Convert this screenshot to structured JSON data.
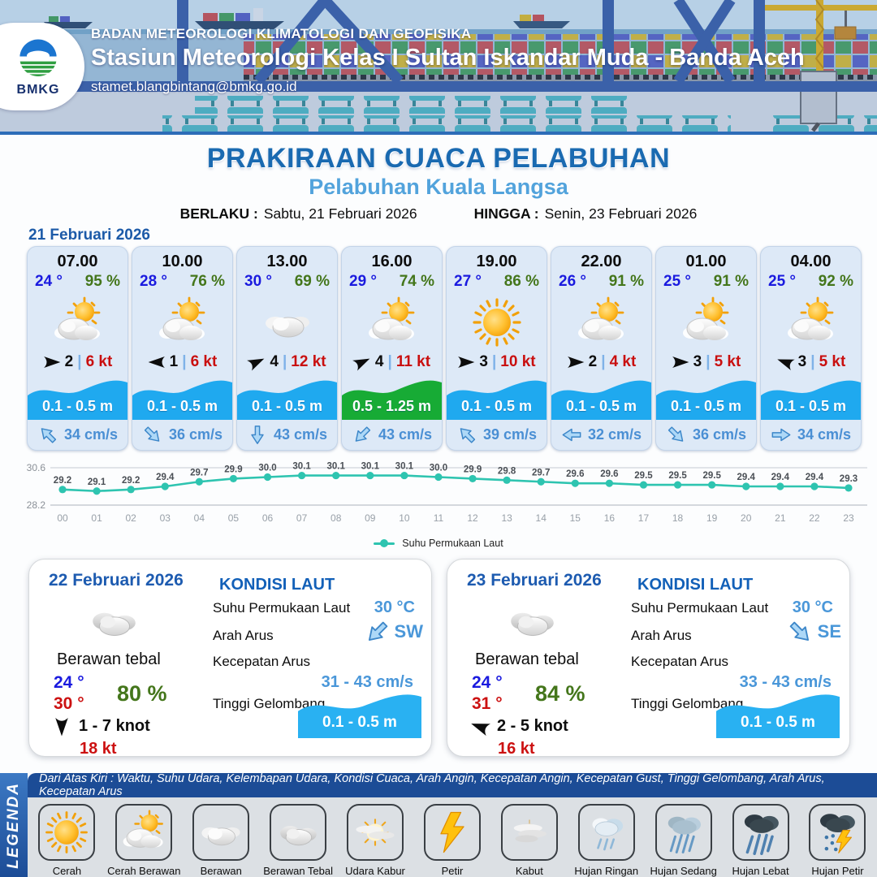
{
  "header": {
    "logo": "BMKG",
    "org": "BADAN METEOROLOGI KLIMATOLOGI DAN GEOFISIKA",
    "station": "Stasiun Meteorologi Kelas I Sultan Iskandar Muda - Banda Aceh",
    "email": "stamet.blangbintang@bmkg.go.id"
  },
  "title": {
    "main": "PRAKIRAAN CUACA PELABUHAN",
    "sub": "Pelabuhan Kuala Langsa"
  },
  "validity": {
    "from_label": "BERLAKU :",
    "from": "Sabtu, 21 Februari 2026",
    "to_label": "HINGGA :",
    "to": "Senin, 23 Februari 2026"
  },
  "ui": {
    "sep": "|"
  },
  "colors": {
    "title_blue": "#1a6ab1",
    "subtitle_blue": "#52a3dc",
    "temp_blue": "#1a1adf",
    "humidity_green": "#44761b",
    "gust_red": "#c90f0f",
    "wave_blue": "#1fa9ef",
    "wave_green": "#17ab35",
    "current_blue": "#4a8fd4",
    "sst_line_teal": "#2ec4b0"
  },
  "day1": {
    "date": "21 Februari 2026",
    "cards": [
      {
        "time": "07.00",
        "temp": "24 °",
        "humidity": "95 %",
        "condition": "Cerah Berawan",
        "icon": "#i-suncloud",
        "wind_deg": 0,
        "wind": "2",
        "gust": "6 kt",
        "wave": "0.1 - 0.5 m",
        "wave_color": "#1fa9ef",
        "current_deg": -135,
        "current": "34 cm/s"
      },
      {
        "time": "10.00",
        "temp": "28 °",
        "humidity": "76 %",
        "condition": "Cerah Berawan",
        "icon": "#i-suncloud",
        "wind_deg": 180,
        "wind": "1",
        "gust": "6 kt",
        "wave": "0.1 - 0.5 m",
        "wave_color": "#1fa9ef",
        "current_deg": 45,
        "current": "36 cm/s"
      },
      {
        "time": "13.00",
        "temp": "30 °",
        "humidity": "69 %",
        "condition": "Berawan",
        "icon": "#i-cloud",
        "wind_deg": -25,
        "wind": "4",
        "gust": "12 kt",
        "wave": "0.1 - 0.5 m",
        "wave_color": "#1fa9ef",
        "current_deg": 90,
        "current": "43 cm/s"
      },
      {
        "time": "16.00",
        "temp": "29 °",
        "humidity": "74 %",
        "condition": "Cerah Berawan",
        "icon": "#i-suncloud",
        "wind_deg": -25,
        "wind": "4",
        "gust": "11 kt",
        "wave": "0.5 - 1.25 m",
        "wave_color": "#17ab35",
        "current_deg": 135,
        "current": "43 cm/s"
      },
      {
        "time": "19.00",
        "temp": "27 °",
        "humidity": "86 %",
        "condition": "Cerah",
        "icon": "#i-sun",
        "wind_deg": 0,
        "wind": "3",
        "gust": "10 kt",
        "wave": "0.1 - 0.5 m",
        "wave_color": "#1fa9ef",
        "current_deg": -135,
        "current": "39 cm/s"
      },
      {
        "time": "22.00",
        "temp": "26 °",
        "humidity": "91 %",
        "condition": "Cerah Berawan",
        "icon": "#i-suncloud",
        "wind_deg": 0,
        "wind": "2",
        "gust": "4 kt",
        "wave": "0.1 - 0.5 m",
        "wave_color": "#1fa9ef",
        "current_deg": 180,
        "current": "32 cm/s"
      },
      {
        "time": "01.00",
        "temp": "25 °",
        "humidity": "91 %",
        "condition": "Cerah Berawan",
        "icon": "#i-suncloud",
        "wind_deg": 0,
        "wind": "3",
        "gust": "5 kt",
        "wave": "0.1 - 0.5 m",
        "wave_color": "#1fa9ef",
        "current_deg": 45,
        "current": "36 cm/s"
      },
      {
        "time": "04.00",
        "temp": "25 °",
        "humidity": "92 %",
        "condition": "Cerah Berawan",
        "icon": "#i-suncloud",
        "wind_deg": -160,
        "wind": "3",
        "gust": "5 kt",
        "wave": "0.1 - 0.5 m",
        "wave_color": "#1fa9ef",
        "current_deg": 0,
        "current": "34 cm/s"
      }
    ]
  },
  "chart_data": {
    "type": "line",
    "title": "",
    "x": [
      "00",
      "01",
      "02",
      "03",
      "04",
      "05",
      "06",
      "07",
      "08",
      "09",
      "10",
      "11",
      "12",
      "13",
      "14",
      "15",
      "16",
      "17",
      "18",
      "19",
      "20",
      "21",
      "22",
      "23"
    ],
    "series": [
      {
        "name": "Suhu Permukaan Laut",
        "values": [
          29.2,
          29.1,
          29.2,
          29.4,
          29.7,
          29.9,
          30.0,
          30.1,
          30.1,
          30.1,
          30.1,
          30.0,
          29.9,
          29.8,
          29.7,
          29.6,
          29.6,
          29.5,
          29.5,
          29.5,
          29.4,
          29.4,
          29.4,
          29.3
        ]
      }
    ],
    "ylim": [
      28.2,
      30.6
    ],
    "yticks": [
      28.2,
      30.6
    ],
    "line_color": "#2ec4b0",
    "grid": true,
    "legend_position": "bottom"
  },
  "day2": {
    "date": "22 Februari 2026",
    "condition": "Berawan tebal",
    "icon": "#i-thickcloud",
    "temp_min": "24 °",
    "temp_max": "30 °",
    "humidity": "80 %",
    "wind_deg": 90,
    "wind_range": "1  - 7 knot",
    "gust": "18 kt",
    "sea": {
      "heading": "KONDISI LAUT",
      "sst_label": "Suhu Permukaan Laut",
      "sst": "30 °C",
      "current_dir_label": "Arah Arus",
      "current_dir": "SW",
      "current_dir_deg": 135,
      "current_speed_label": "Kecepatan Arus",
      "current_speed": "31  - 43 cm/s",
      "wave_label": "Tinggi Gelombang",
      "wave": "0.1 - 0.5 m",
      "wave_color": "#29b1f2"
    }
  },
  "day3": {
    "date": "23 Februari 2026",
    "condition": "Berawan tebal",
    "icon": "#i-thickcloud",
    "temp_min": "24 °",
    "temp_max": "31 °",
    "humidity": "84 %",
    "wind_deg": -160,
    "wind_range": "2  - 5 knot",
    "gust": "16 kt",
    "sea": {
      "heading": "KONDISI LAUT",
      "sst_label": "Suhu Permukaan Laut",
      "sst": "30 °C",
      "current_dir_label": "Arah Arus",
      "current_dir": "SE",
      "current_dir_deg": 45,
      "current_speed_label": "Kecepatan Arus",
      "current_speed": "33  - 43 cm/s",
      "wave_label": "Tinggi Gelombang",
      "wave": "0.1 - 0.5 m",
      "wave_color": "#29b1f2"
    }
  },
  "legend": {
    "title": "LEGENDA",
    "caption": "Dari Atas Kiri : Waktu, Suhu Udara, Kelembapan Udara, Kondisi Cuaca, Arah Angin, Kecepatan Angin, Kecepatan Gust, Tinggi Gelombang, Arah Arus, Kecepatan Arus",
    "items": [
      {
        "label": "Cerah",
        "icon": "#i-sun"
      },
      {
        "label": "Cerah Berawan",
        "icon": "#i-suncloud"
      },
      {
        "label": "Berawan",
        "icon": "#i-cloud"
      },
      {
        "label": "Berawan Tebal",
        "icon": "#i-thickcloud"
      },
      {
        "label": "Udara Kabur",
        "icon": "#i-haze"
      },
      {
        "label": "Petir",
        "icon": "#i-bolt"
      },
      {
        "label": "Kabut",
        "icon": "#i-fog"
      },
      {
        "label": "Hujan Ringan",
        "icon": "#i-rain1"
      },
      {
        "label": "Hujan Sedang",
        "icon": "#i-rain2"
      },
      {
        "label": "Hujan Lebat",
        "icon": "#i-rain3"
      },
      {
        "label": "Hujan Petir",
        "icon": "#i-rainbolt"
      }
    ]
  }
}
